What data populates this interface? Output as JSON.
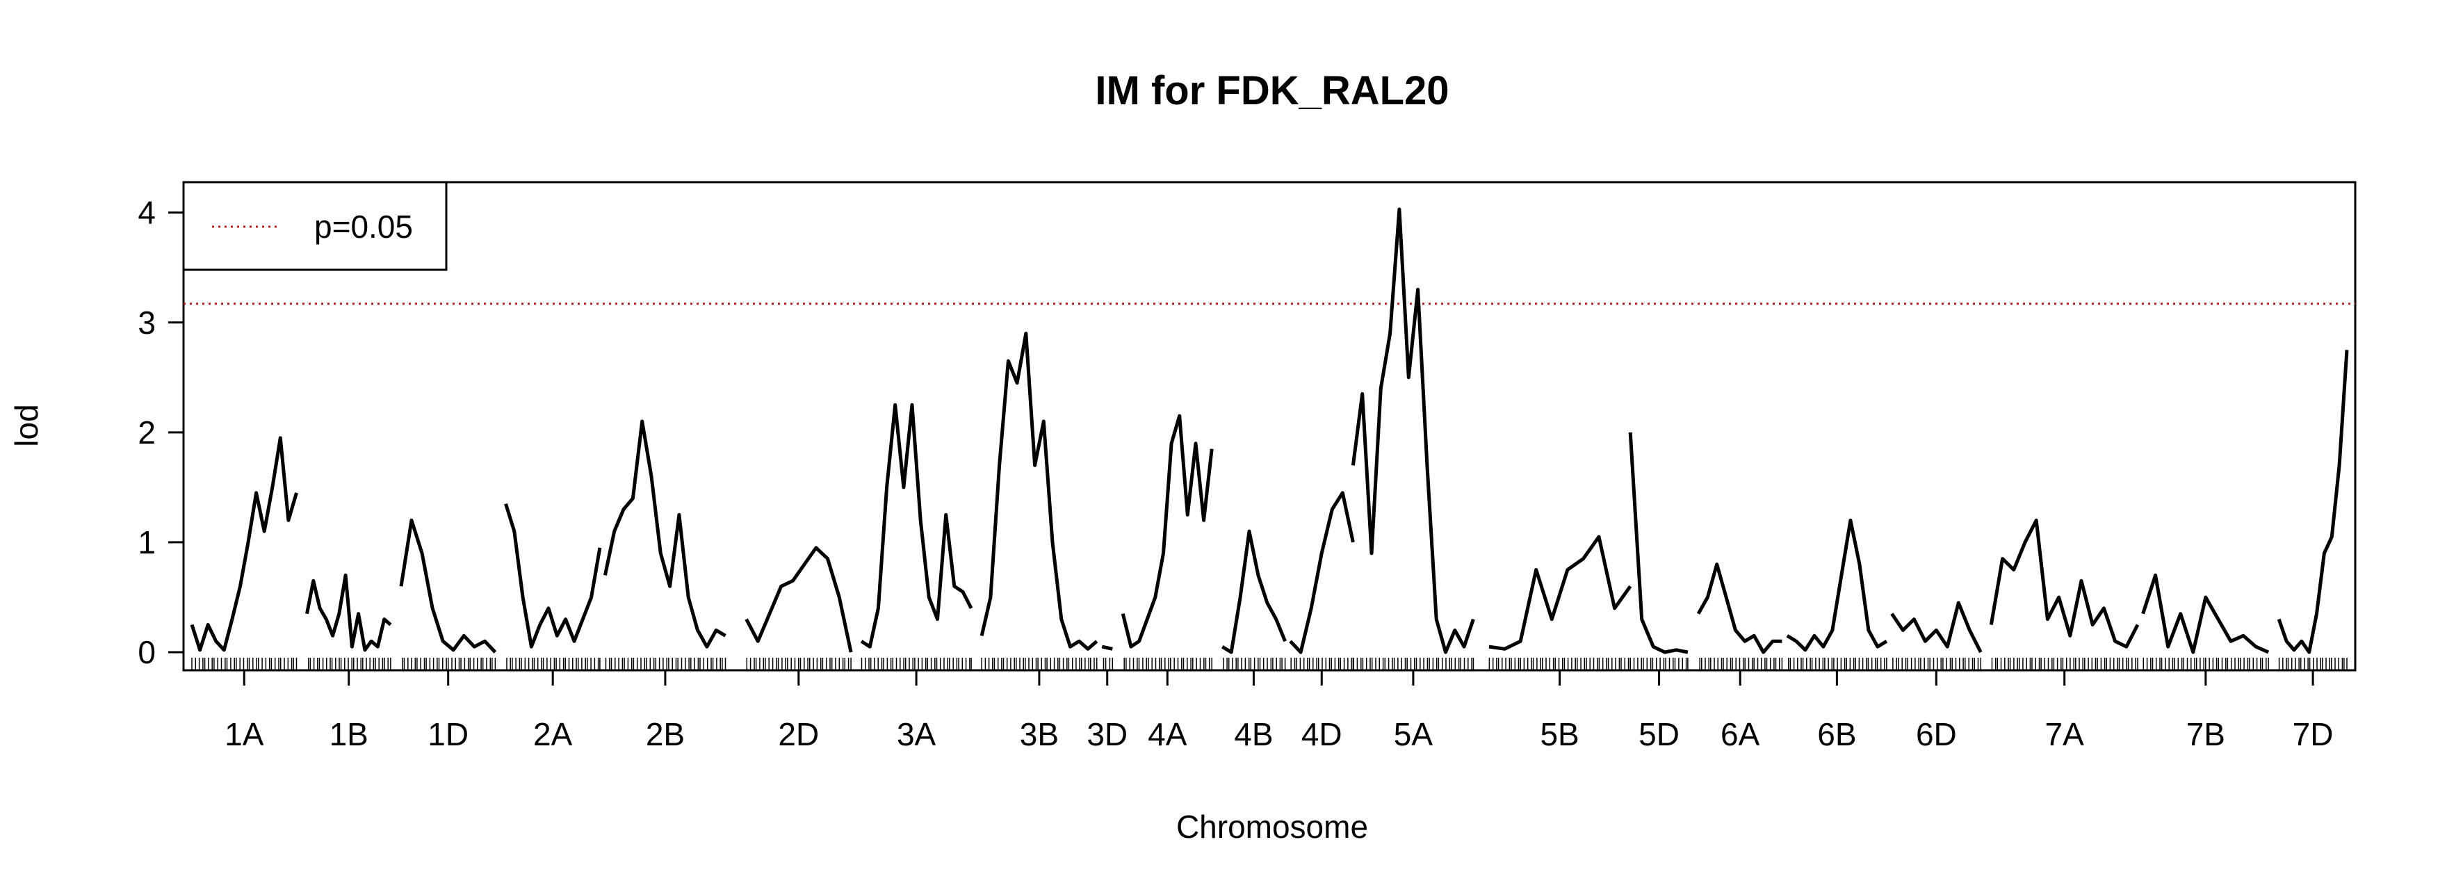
{
  "chart_data": {
    "type": "line",
    "title": "IM for FDK_RAL20",
    "xlabel": "Chromosome",
    "ylabel": "lod",
    "ylim": [
      0,
      4.15
    ],
    "yticks": [
      "0",
      "1",
      "2",
      "3",
      "4"
    ],
    "threshold": {
      "label": "p=0.05",
      "value": 3.17,
      "color": "#b22222",
      "style": "dotted"
    },
    "legend_position": "top-left",
    "line_color": "#000000",
    "chromosomes": [
      {
        "name": "1A",
        "start": 0,
        "end": 100,
        "lod": [
          0.25,
          0.02,
          0.25,
          0.1,
          0.02,
          0.3,
          0.6,
          1.0,
          1.45,
          1.1,
          1.5,
          1.95,
          1.2,
          1.45
        ]
      },
      {
        "name": "1B",
        "start": 110,
        "end": 190,
        "lod": [
          0.35,
          0.65,
          0.4,
          0.3,
          0.15,
          0.35,
          0.7,
          0.05,
          0.35,
          0.02,
          0.1,
          0.05,
          0.3,
          0.25
        ]
      },
      {
        "name": "1D",
        "start": 200,
        "end": 290,
        "lod": [
          0.6,
          1.2,
          0.9,
          0.4,
          0.1,
          0.02,
          0.15,
          0.05,
          0.1,
          0.0
        ]
      },
      {
        "name": "2A",
        "start": 300,
        "end": 390,
        "lod": [
          1.35,
          1.1,
          0.5,
          0.05,
          0.25,
          0.4,
          0.15,
          0.3,
          0.1,
          0.3,
          0.5,
          0.95
        ]
      },
      {
        "name": "2B",
        "start": 395,
        "end": 510,
        "lod": [
          0.7,
          1.1,
          1.3,
          1.4,
          2.1,
          1.6,
          0.9,
          0.6,
          1.25,
          0.5,
          0.2,
          0.05,
          0.2,
          0.15
        ]
      },
      {
        "name": "2D",
        "start": 530,
        "end": 630,
        "lod": [
          0.3,
          0.1,
          0.35,
          0.6,
          0.65,
          0.8,
          0.95,
          0.85,
          0.5,
          0.0
        ]
      },
      {
        "name": "3A",
        "start": 640,
        "end": 745,
        "lod": [
          0.1,
          0.05,
          0.4,
          1.5,
          2.25,
          1.5,
          2.25,
          1.2,
          0.5,
          0.3,
          1.25,
          0.6,
          0.55,
          0.4
        ]
      },
      {
        "name": "3B",
        "start": 755,
        "end": 865,
        "lod": [
          0.15,
          0.5,
          1.7,
          2.65,
          2.45,
          2.9,
          1.7,
          2.1,
          1.0,
          0.3,
          0.05,
          0.1,
          0.03,
          0.1
        ]
      },
      {
        "name": "3D",
        "start": 870,
        "end": 880,
        "lod": [
          0.05,
          0.03
        ]
      },
      {
        "name": "4A",
        "start": 890,
        "end": 975,
        "lod": [
          0.35,
          0.05,
          0.1,
          0.3,
          0.5,
          0.9,
          1.9,
          2.15,
          1.25,
          1.9,
          1.2,
          1.85
        ]
      },
      {
        "name": "4B",
        "start": 985,
        "end": 1045,
        "lod": [
          0.05,
          0.0,
          0.5,
          1.1,
          0.7,
          0.45,
          0.3,
          0.1
        ]
      },
      {
        "name": "4D",
        "start": 1050,
        "end": 1110,
        "lod": [
          0.1,
          0.0,
          0.4,
          0.9,
          1.3,
          1.45,
          1.0
        ]
      },
      {
        "name": "5A",
        "start": 1110,
        "end": 1225,
        "lod": [
          1.7,
          2.35,
          0.9,
          2.4,
          2.9,
          4.03,
          2.5,
          3.3,
          1.7,
          0.3,
          0.0,
          0.2,
          0.05,
          0.3
        ]
      },
      {
        "name": "5B",
        "start": 1240,
        "end": 1375,
        "lod": [
          0.05,
          0.03,
          0.1,
          0.75,
          0.3,
          0.75,
          0.85,
          1.05,
          0.4,
          0.6
        ]
      },
      {
        "name": "5D",
        "start": 1375,
        "end": 1430,
        "lod": [
          2.0,
          0.3,
          0.05,
          0.0,
          0.02,
          0.0
        ]
      },
      {
        "name": "6A",
        "start": 1440,
        "end": 1520,
        "lod": [
          0.35,
          0.5,
          0.8,
          0.5,
          0.2,
          0.1,
          0.15,
          0.0,
          0.1,
          0.1
        ]
      },
      {
        "name": "6B",
        "start": 1525,
        "end": 1620,
        "lod": [
          0.15,
          0.1,
          0.02,
          0.15,
          0.05,
          0.2,
          0.7,
          1.2,
          0.8,
          0.2,
          0.05,
          0.1
        ]
      },
      {
        "name": "6D",
        "start": 1625,
        "end": 1710,
        "lod": [
          0.35,
          0.2,
          0.3,
          0.1,
          0.2,
          0.05,
          0.45,
          0.2,
          0.0
        ]
      },
      {
        "name": "7A",
        "start": 1720,
        "end": 1860,
        "lod": [
          0.25,
          0.85,
          0.75,
          1.0,
          1.2,
          0.3,
          0.5,
          0.15,
          0.65,
          0.25,
          0.4,
          0.1,
          0.05,
          0.25
        ]
      },
      {
        "name": "7B",
        "start": 1865,
        "end": 1985,
        "lod": [
          0.35,
          0.7,
          0.05,
          0.35,
          0.0,
          0.5,
          0.3,
          0.1,
          0.15,
          0.05,
          0.0
        ]
      },
      {
        "name": "7D",
        "start": 1995,
        "end": 2060,
        "lod": [
          0.3,
          0.1,
          0.02,
          0.1,
          0.0,
          0.35,
          0.9,
          1.05,
          1.7,
          2.75
        ]
      }
    ]
  }
}
